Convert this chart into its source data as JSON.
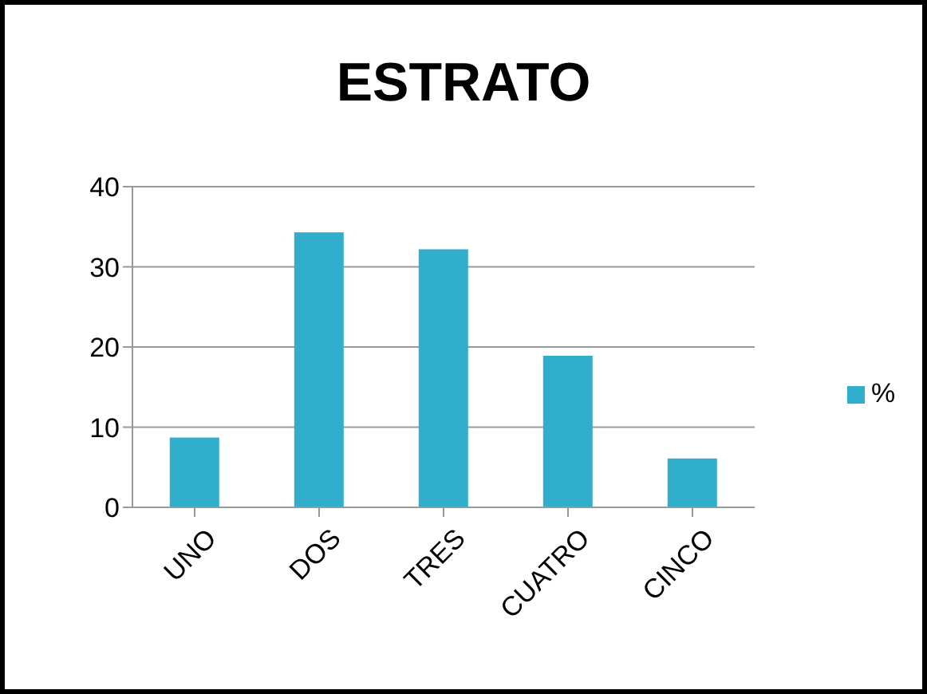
{
  "chart_data": {
    "type": "bar",
    "title": "ESTRATO",
    "categories": [
      "UNO",
      "DOS",
      "TRES",
      "CUATRO",
      "CINCO"
    ],
    "series": [
      {
        "name": "%",
        "color": "#31aecb",
        "values": [
          8.7,
          34.3,
          32.2,
          18.9,
          6.1
        ]
      }
    ],
    "ylim": [
      0,
      40
    ],
    "yticks": [
      0,
      10,
      20,
      30,
      40
    ],
    "grid": "y",
    "legend": "right"
  }
}
